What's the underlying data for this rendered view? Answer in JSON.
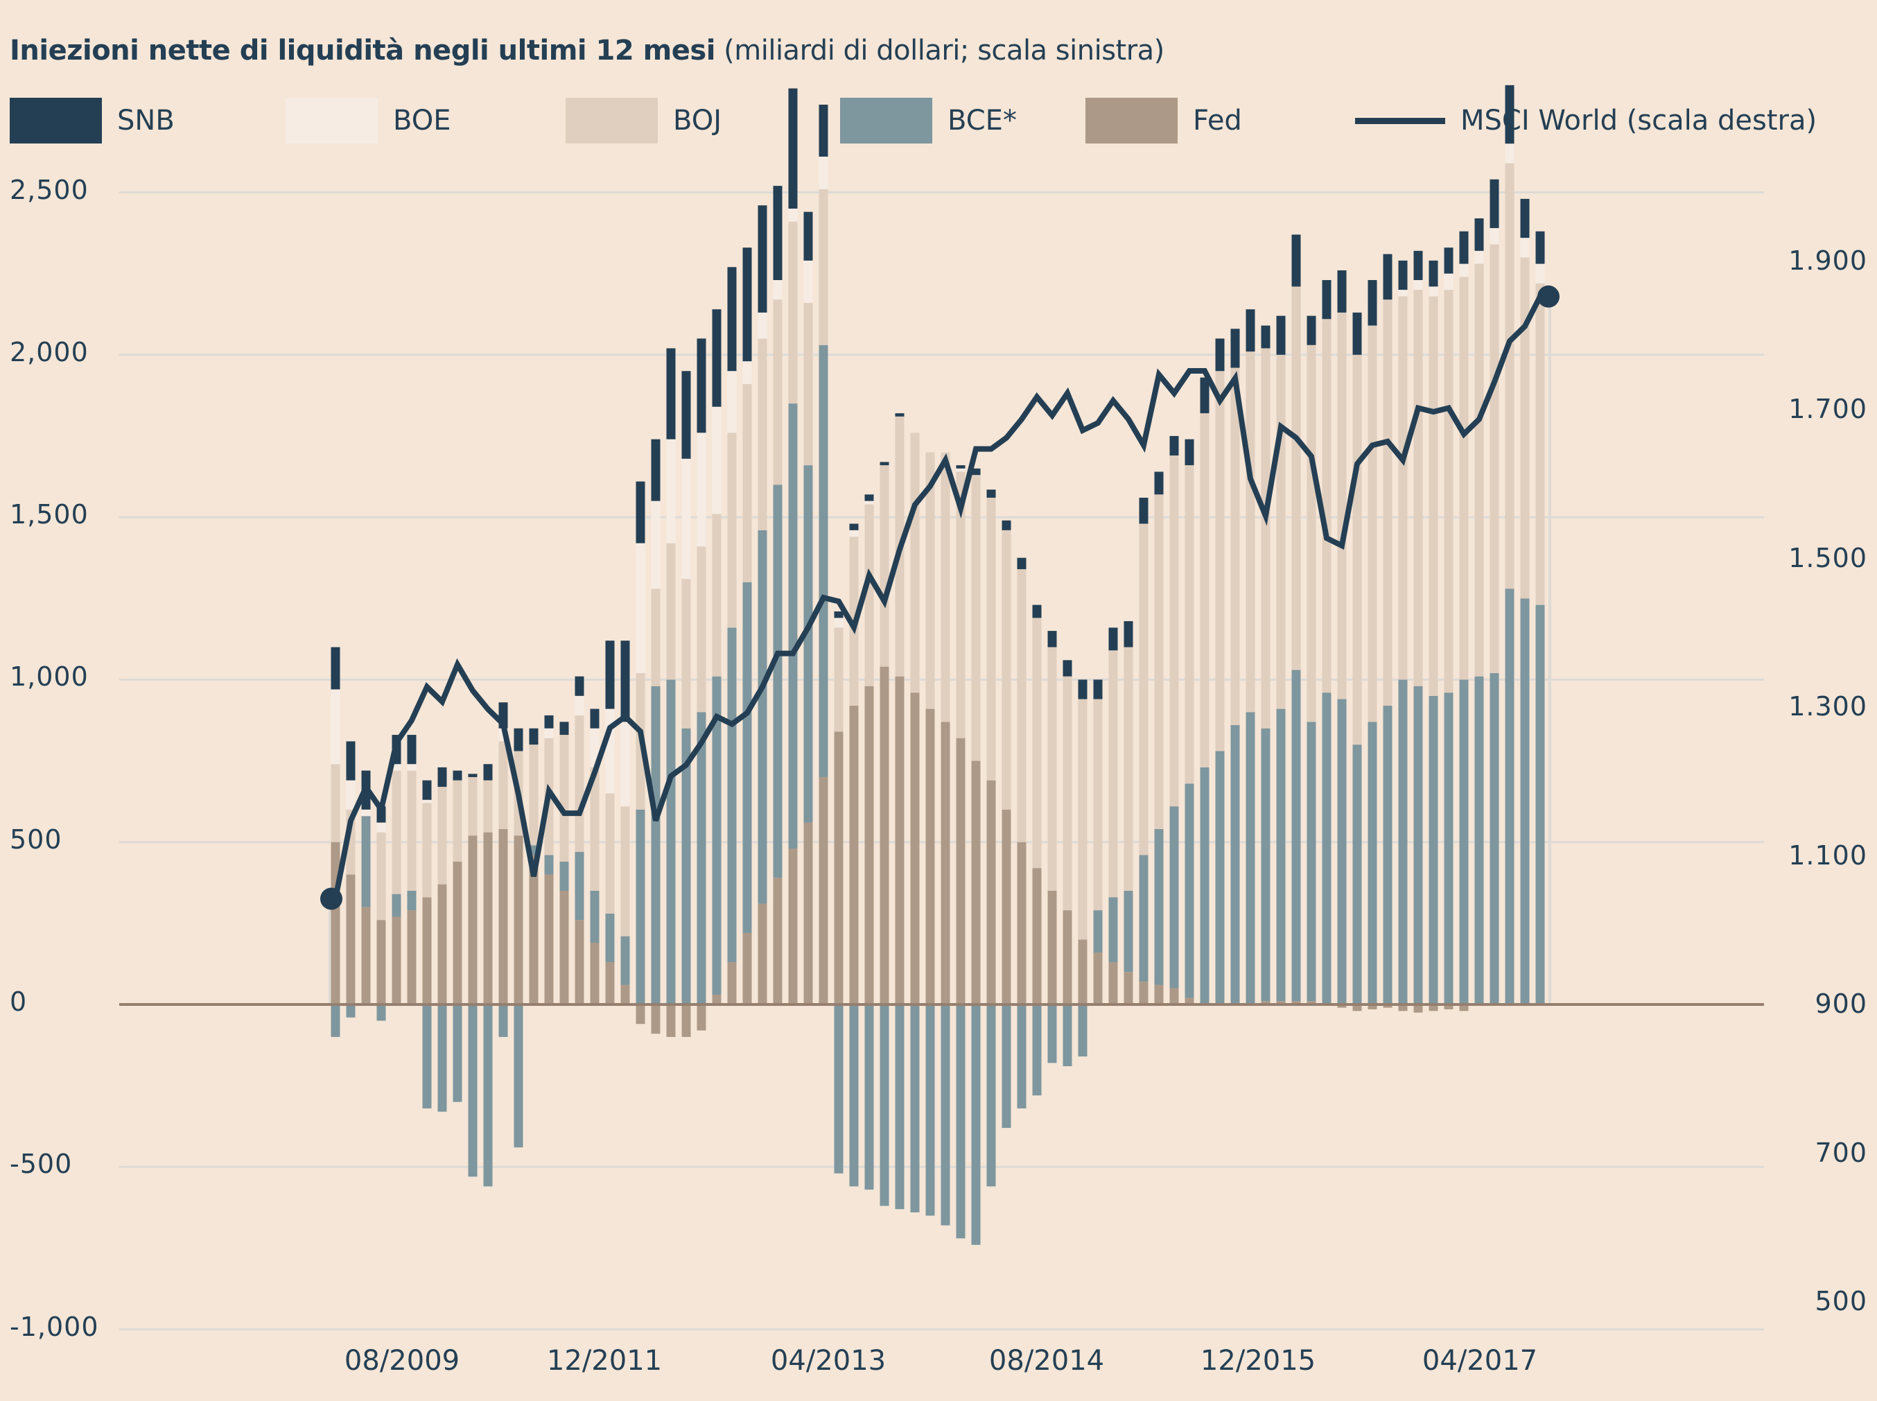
{
  "chart_data": {
    "type": "bar",
    "subtype": "stacked-bar-with-line",
    "title": "Iniezioni nette di liquidità negli ultimi 12 mesi",
    "subtitle": "(miliardi di dollari; scala sinistra)",
    "ylabel_left": "miliardi di dollari",
    "ylim_left": [
      -1000,
      2500
    ],
    "yticks_left": [
      2500,
      2000,
      1500,
      1000,
      500,
      0,
      -500,
      -1000
    ],
    "ytick_labels_left": [
      "2,500",
      "2,000",
      "1,500",
      "1,000",
      "500",
      "0",
      "-500",
      "-1,000"
    ],
    "ylim_right": [
      500,
      2000
    ],
    "yticks_right": [
      1900,
      1700,
      1500,
      1300,
      1100,
      900,
      700,
      500
    ],
    "ytick_labels_right": [
      "1.900",
      "1.700",
      "1.500",
      "1.300",
      "1.100",
      "900",
      "700",
      "500"
    ],
    "x_tick_labels": [
      "08/2009",
      "12/2011",
      "04/2013",
      "08/2014",
      "12/2015",
      "04/2017"
    ],
    "x_tick_index": [
      4,
      17,
      27,
      37,
      47,
      57
    ],
    "grid": true,
    "legend_position": "top",
    "legend": [
      {
        "name": "SNB",
        "type": "bar",
        "color": "#243f54"
      },
      {
        "name": "BOE",
        "type": "bar",
        "color": "#f6ece4"
      },
      {
        "name": "BOJ",
        "type": "bar",
        "color": "#e0cfbf"
      },
      {
        "name": "BCE*",
        "type": "bar",
        "color": "#7e969e"
      },
      {
        "name": "Fed",
        "type": "bar",
        "color": "#ad9987"
      },
      {
        "name": "MSCI World (scala destra)",
        "type": "line",
        "color": "#243f54"
      }
    ],
    "series": [
      {
        "name": "Fed",
        "axis": "left",
        "values": [
          500,
          400,
          300,
          260,
          270,
          290,
          330,
          370,
          440,
          520,
          530,
          540,
          520,
          460,
          400,
          350,
          260,
          190,
          130,
          60,
          -60,
          -90,
          -100,
          -100,
          -80,
          30,
          130,
          220,
          310,
          390,
          480,
          560,
          700,
          840,
          920,
          980,
          1040,
          1010,
          960,
          910,
          870,
          820,
          750,
          690,
          600,
          500,
          420,
          350,
          290,
          200,
          160,
          130,
          100,
          70,
          60,
          50,
          20,
          0,
          0,
          0,
          0,
          10,
          10,
          10,
          10,
          0,
          -10,
          -20,
          -15,
          -10,
          -20,
          -25,
          -20,
          -15,
          -20,
          0,
          0,
          0,
          0,
          0
        ],
        "values_note": "approximate, read from bar heights"
      },
      {
        "name": "BCE*",
        "axis": "left",
        "values": [
          -100,
          -40,
          280,
          -50,
          70,
          60,
          -320,
          -330,
          -300,
          -530,
          -560,
          -100,
          -440,
          30,
          60,
          90,
          210,
          160,
          150,
          150,
          600,
          980,
          1000,
          850,
          900,
          980,
          1030,
          1080,
          1150,
          1210,
          1370,
          1100,
          1330,
          -520,
          -560,
          -570,
          -620,
          -630,
          -640,
          -650,
          -680,
          -720,
          -740,
          -560,
          -380,
          -320,
          -280,
          -180,
          -190,
          -160,
          130,
          200,
          250,
          390,
          480,
          560,
          660,
          730,
          780,
          860,
          900,
          840,
          900,
          1020,
          860,
          960,
          940,
          800,
          870,
          920,
          1000,
          980,
          950,
          960,
          1000,
          1010,
          1020,
          1280,
          1250,
          1230
        ],
        "values_note": "approximate"
      },
      {
        "name": "BOJ",
        "axis": "left",
        "values": [
          240,
          200,
          0,
          270,
          380,
          370,
          290,
          300,
          250,
          180,
          160,
          270,
          260,
          310,
          360,
          390,
          420,
          380,
          370,
          400,
          420,
          300,
          420,
          460,
          510,
          500,
          600,
          610,
          590,
          570,
          560,
          500,
          480,
          320,
          520,
          560,
          620,
          800,
          800,
          790,
          830,
          820,
          880,
          870,
          860,
          840,
          770,
          750,
          720,
          740,
          650,
          760,
          750,
          1020,
          1030,
          1080,
          980,
          1090,
          1170,
          1100,
          1110,
          1170,
          1090,
          1180,
          1160,
          1150,
          1190,
          1200,
          1220,
          1250,
          1180,
          1220,
          1230,
          1240,
          1240,
          1270,
          1320,
          1310,
          1050,
          990
        ],
        "values_note": "approximate"
      },
      {
        "name": "BOE",
        "axis": "left",
        "values": [
          230,
          90,
          20,
          30,
          20,
          20,
          10,
          0,
          0,
          0,
          0,
          40,
          0,
          0,
          30,
          0,
          60,
          120,
          260,
          260,
          400,
          270,
          320,
          370,
          350,
          330,
          190,
          70,
          80,
          60,
          40,
          130,
          100,
          30,
          20,
          10,
          0,
          0,
          0,
          0,
          0,
          10,
          0,
          0,
          0,
          0,
          0,
          0,
          0,
          0,
          0,
          0,
          0,
          0,
          0,
          0,
          0,
          0,
          0,
          0,
          0,
          0,
          0,
          0,
          0,
          0,
          0,
          0,
          0,
          0,
          20,
          30,
          30,
          50,
          40,
          40,
          50,
          60,
          60,
          60
        ],
        "values_note": "approximate"
      },
      {
        "name": "SNB",
        "axis": "left",
        "values": [
          130,
          120,
          120,
          50,
          90,
          90,
          60,
          60,
          30,
          10,
          50,
          80,
          70,
          50,
          40,
          40,
          60,
          60,
          210,
          250,
          190,
          190,
          280,
          270,
          290,
          300,
          320,
          350,
          330,
          290,
          370,
          150,
          160,
          20,
          20,
          20,
          10,
          10,
          0,
          0,
          0,
          10,
          20,
          25,
          30,
          35,
          40,
          50,
          50,
          60,
          60,
          70,
          80,
          80,
          70,
          60,
          80,
          110,
          100,
          120,
          130,
          70,
          120,
          160,
          90,
          120,
          130,
          130,
          140,
          140,
          90,
          90,
          80,
          80,
          100,
          100,
          150,
          180,
          120,
          100
        ],
        "values_note": "approximate"
      },
      {
        "name": "MSCI World (scala destra)",
        "axis": "right",
        "type": "line",
        "values": [
          1045,
          1150,
          1195,
          1165,
          1255,
          1285,
          1330,
          1310,
          1360,
          1325,
          1300,
          1280,
          1185,
          1075,
          1190,
          1160,
          1160,
          1215,
          1275,
          1290,
          1270,
          1150,
          1210,
          1225,
          1255,
          1290,
          1280,
          1295,
          1330,
          1375,
          1375,
          1410,
          1450,
          1445,
          1410,
          1480,
          1445,
          1515,
          1575,
          1600,
          1635,
          1570,
          1650,
          1650,
          1665,
          1690,
          1720,
          1695,
          1725,
          1675,
          1685,
          1715,
          1690,
          1655,
          1750,
          1725,
          1755,
          1755,
          1715,
          1745,
          1610,
          1560,
          1680,
          1665,
          1640,
          1530,
          1520,
          1630,
          1655,
          1660,
          1635,
          1705,
          1700,
          1705,
          1670,
          1690,
          1740,
          1795,
          1815,
          1855
        ]
      }
    ]
  }
}
